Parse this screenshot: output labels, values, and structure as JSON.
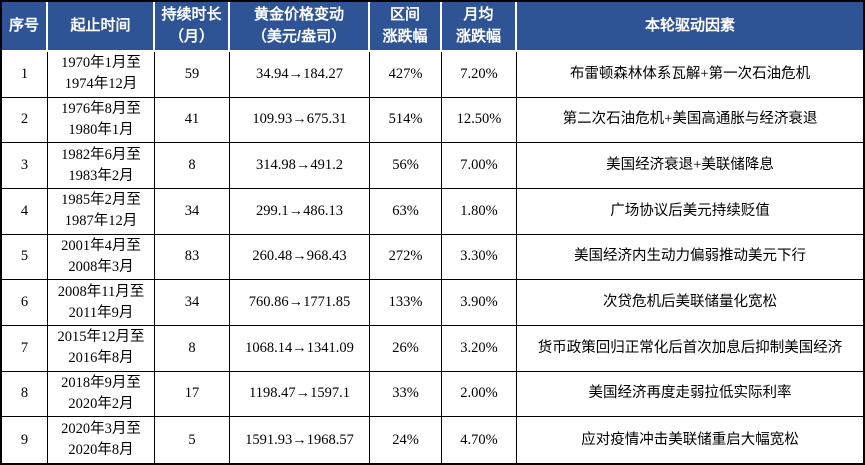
{
  "colors": {
    "header_bg": "#2F5496",
    "header_text": "#FFFFFF",
    "border": "#000000",
    "body_text": "#000000",
    "body_bg": "#FFFFFF"
  },
  "table": {
    "headers": [
      "序号",
      "起止时间",
      "持续时长\n（月）",
      "黄金价格变动\n（美元/盎司）",
      "区间\n涨跌幅",
      "月均\n涨跌幅",
      "本轮驱动因素"
    ],
    "rows": [
      {
        "no": "1",
        "period": "1970年1月至\n1974年12月",
        "duration": "59",
        "price": "34.94→184.27",
        "range": "427%",
        "monthly": "7.20%",
        "driver": "布雷顿森林体系瓦解+第一次石油危机"
      },
      {
        "no": "2",
        "period": "1976年8月至\n1980年1月",
        "duration": "41",
        "price": "109.93→675.31",
        "range": "514%",
        "monthly": "12.50%",
        "driver": "第二次石油危机+美国高通胀与经济衰退"
      },
      {
        "no": "3",
        "period": "1982年6月至\n1983年2月",
        "duration": "8",
        "price": "314.98→491.2",
        "range": "56%",
        "monthly": "7.00%",
        "driver": "美国经济衰退+美联储降息"
      },
      {
        "no": "4",
        "period": "1985年2月至\n1987年12月",
        "duration": "34",
        "price": "299.1→486.13",
        "range": "63%",
        "monthly": "1.80%",
        "driver": "广场协议后美元持续贬值"
      },
      {
        "no": "5",
        "period": "2001年4月至\n2008年3月",
        "duration": "83",
        "price": "260.48→968.43",
        "range": "272%",
        "monthly": "3.30%",
        "driver": "美国经济内生动力偏弱推动美元下行"
      },
      {
        "no": "6",
        "period": "2008年11月至\n2011年9月",
        "duration": "34",
        "price": "760.86→1771.85",
        "range": "133%",
        "monthly": "3.90%",
        "driver": "次贷危机后美联储量化宽松"
      },
      {
        "no": "7",
        "period": "2015年12月至\n2016年8月",
        "duration": "8",
        "price": "1068.14→1341.09",
        "range": "26%",
        "monthly": "3.20%",
        "driver": "货币政策回归正常化后首次加息后抑制美国经济"
      },
      {
        "no": "8",
        "period": "2018年9月至\n2020年2月",
        "duration": "17",
        "price": "1198.47→1597.1",
        "range": "33%",
        "monthly": "2.00%",
        "driver": "美国经济再度走弱拉低实际利率"
      },
      {
        "no": "9",
        "period": "2020年3月至\n2020年8月",
        "duration": "5",
        "price": "1591.93→1968.57",
        "range": "24%",
        "monthly": "4.70%",
        "driver": "应对疫情冲击美联储重启大幅宽松"
      }
    ]
  },
  "chart_data": {
    "type": "table",
    "columns": [
      "序号",
      "起止时间",
      "持续时长（月）",
      "黄金价格变动（美元/盎司）",
      "区间涨跌幅",
      "月均涨跌幅",
      "本轮驱动因素"
    ],
    "rows": [
      {
        "no": 1,
        "start": "1970年1月",
        "end": "1974年12月",
        "duration_months": 59,
        "price_start": 34.94,
        "price_end": 184.27,
        "range_change_pct": 427,
        "monthly_avg_change_pct": 7.2,
        "driver": "布雷顿森林体系瓦解+第一次石油危机"
      },
      {
        "no": 2,
        "start": "1976年8月",
        "end": "1980年1月",
        "duration_months": 41,
        "price_start": 109.93,
        "price_end": 675.31,
        "range_change_pct": 514,
        "monthly_avg_change_pct": 12.5,
        "driver": "第二次石油危机+美国高通胀与经济衰退"
      },
      {
        "no": 3,
        "start": "1982年6月",
        "end": "1983年2月",
        "duration_months": 8,
        "price_start": 314.98,
        "price_end": 491.2,
        "range_change_pct": 56,
        "monthly_avg_change_pct": 7.0,
        "driver": "美国经济衰退+美联储降息"
      },
      {
        "no": 4,
        "start": "1985年2月",
        "end": "1987年12月",
        "duration_months": 34,
        "price_start": 299.1,
        "price_end": 486.13,
        "range_change_pct": 63,
        "monthly_avg_change_pct": 1.8,
        "driver": "广场协议后美元持续贬值"
      },
      {
        "no": 5,
        "start": "2001年4月",
        "end": "2008年3月",
        "duration_months": 83,
        "price_start": 260.48,
        "price_end": 968.43,
        "range_change_pct": 272,
        "monthly_avg_change_pct": 3.3,
        "driver": "美国经济内生动力偏弱推动美元下行"
      },
      {
        "no": 6,
        "start": "2008年11月",
        "end": "2011年9月",
        "duration_months": 34,
        "price_start": 760.86,
        "price_end": 1771.85,
        "range_change_pct": 133,
        "monthly_avg_change_pct": 3.9,
        "driver": "次贷危机后美联储量化宽松"
      },
      {
        "no": 7,
        "start": "2015年12月",
        "end": "2016年8月",
        "duration_months": 8,
        "price_start": 1068.14,
        "price_end": 1341.09,
        "range_change_pct": 26,
        "monthly_avg_change_pct": 3.2,
        "driver": "货币政策回归正常化后首次加息后抑制美国经济"
      },
      {
        "no": 8,
        "start": "2018年9月",
        "end": "2020年2月",
        "duration_months": 17,
        "price_start": 1198.47,
        "price_end": 1597.1,
        "range_change_pct": 33,
        "monthly_avg_change_pct": 2.0,
        "driver": "美国经济再度走弱拉低实际利率"
      },
      {
        "no": 9,
        "start": "2020年3月",
        "end": "2020年8月",
        "duration_months": 5,
        "price_start": 1591.93,
        "price_end": 1968.57,
        "range_change_pct": 24,
        "monthly_avg_change_pct": 4.7,
        "driver": "应对疫情冲击美联储重启大幅宽松"
      }
    ]
  }
}
